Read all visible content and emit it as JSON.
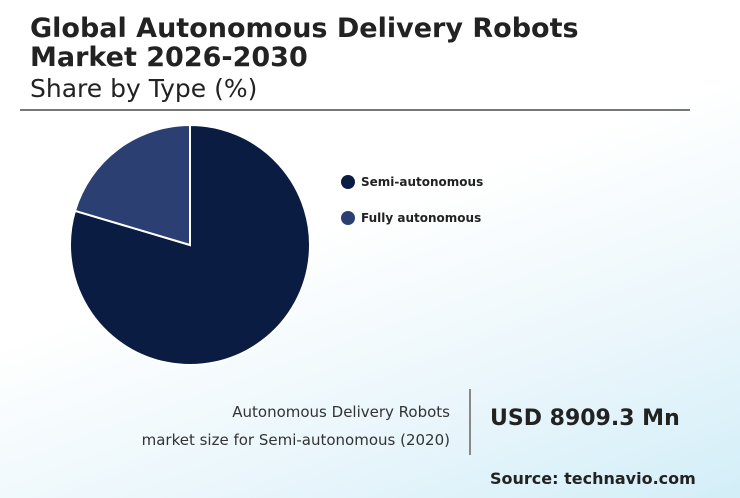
{
  "title": "Global Autonomous Delivery Robots Market 2026-2030",
  "subtitle": "Share by Type (%)",
  "chart_data": {
    "type": "pie",
    "title": "Global Autonomous Delivery Robots Market 2026-2030 — Share by Type (%)",
    "categories": [
      "Semi-autonomous",
      "Fully autonomous"
    ],
    "values": [
      79.6,
      20.4
    ],
    "colors": [
      "#0a1c42",
      "#2c3f72"
    ],
    "legend": "right"
  },
  "footer": {
    "desc_line1": "Autonomous Delivery Robots",
    "desc_line2": "market size for Semi-autonomous (2020)",
    "value": "USD 8909.3 Mn",
    "source": "Source: technavio.com"
  }
}
